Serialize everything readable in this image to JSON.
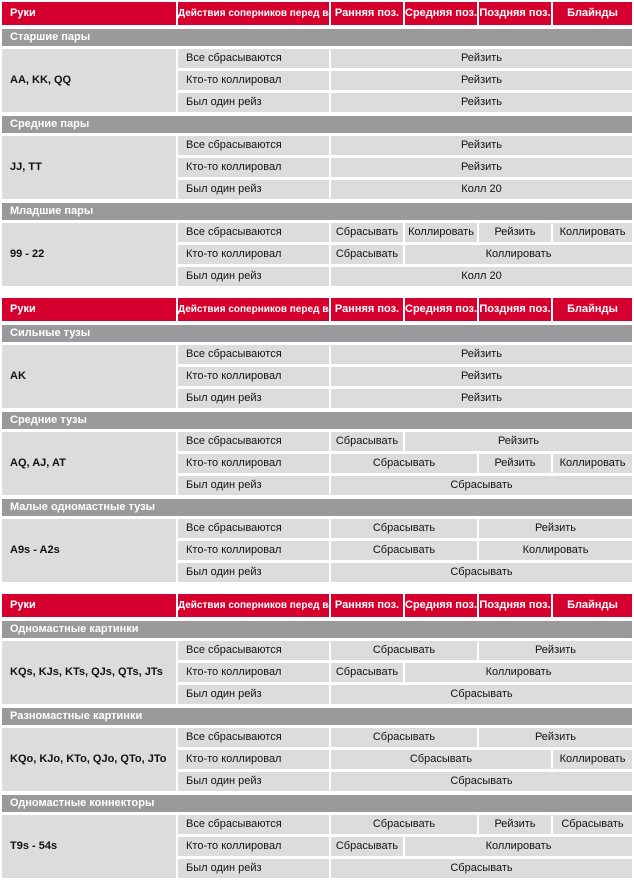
{
  "colors": {
    "header_red": "#d6002f",
    "section_gray": "#9a9a9c",
    "cell_gray": "#dcdcdc",
    "header_text": "#ffffff",
    "body_text": "#111111"
  },
  "columns": [
    "Руки",
    "Действия соперников перед вами",
    "Ранняя поз.",
    "Средняя поз.",
    "Поздняя поз.",
    "Блайнды"
  ],
  "tables": [
    {
      "sections": [
        {
          "title": "Старшие пары",
          "hands": "AA, KK, QQ",
          "rows": [
            {
              "action": "Все сбрасываются",
              "cells": [
                {
                  "text": "Рейзить",
                  "span": 4
                }
              ]
            },
            {
              "action": "Кто-то коллировал",
              "cells": [
                {
                  "text": "Рейзить",
                  "span": 4
                }
              ]
            },
            {
              "action": "Был один рейз",
              "cells": [
                {
                  "text": "Рейзить",
                  "span": 4
                }
              ]
            }
          ]
        },
        {
          "title": "Средние пары",
          "hands": "JJ, TT",
          "rows": [
            {
              "action": "Все сбрасываются",
              "cells": [
                {
                  "text": "Рейзить",
                  "span": 4
                }
              ]
            },
            {
              "action": "Кто-то коллировал",
              "cells": [
                {
                  "text": "Рейзить",
                  "span": 4
                }
              ]
            },
            {
              "action": "Был один рейз",
              "cells": [
                {
                  "text": "Колл 20",
                  "span": 4
                }
              ]
            }
          ]
        },
        {
          "title": "Младшие пары",
          "hands": "99 - 22",
          "rows": [
            {
              "action": "Все сбрасываются",
              "cells": [
                {
                  "text": "Сбрасывать",
                  "span": 1
                },
                {
                  "text": "Коллировать",
                  "span": 1
                },
                {
                  "text": "Рейзить",
                  "span": 1
                },
                {
                  "text": "Коллировать",
                  "span": 1
                }
              ]
            },
            {
              "action": "Кто-то коллировал",
              "cells": [
                {
                  "text": "Сбрасывать",
                  "span": 1
                },
                {
                  "text": "Коллировать",
                  "span": 3
                }
              ]
            },
            {
              "action": "Был один рейз",
              "cells": [
                {
                  "text": "Колл 20",
                  "span": 4
                }
              ]
            }
          ]
        }
      ]
    },
    {
      "sections": [
        {
          "title": "Сильные тузы",
          "hands": "AK",
          "rows": [
            {
              "action": "Все сбрасываются",
              "cells": [
                {
                  "text": "Рейзить",
                  "span": 4
                }
              ]
            },
            {
              "action": "Кто-то коллировал",
              "cells": [
                {
                  "text": "Рейзить",
                  "span": 4
                }
              ]
            },
            {
              "action": "Был один рейз",
              "cells": [
                {
                  "text": "Рейзить",
                  "span": 4
                }
              ]
            }
          ]
        },
        {
          "title": "Средние тузы",
          "hands": "AQ, AJ, AT",
          "rows": [
            {
              "action": "Все сбрасываются",
              "cells": [
                {
                  "text": "Сбрасывать",
                  "span": 1
                },
                {
                  "text": "Рейзить",
                  "span": 3
                }
              ]
            },
            {
              "action": "Кто-то коллировал",
              "cells": [
                {
                  "text": "Сбрасывать",
                  "span": 2
                },
                {
                  "text": "Рейзить",
                  "span": 1
                },
                {
                  "text": "Коллировать",
                  "span": 1
                }
              ]
            },
            {
              "action": "Был один рейз",
              "cells": [
                {
                  "text": "Сбрасывать",
                  "span": 4
                }
              ]
            }
          ]
        },
        {
          "title": "Малые одномастные тузы",
          "hands": "A9s - A2s",
          "rows": [
            {
              "action": "Все сбрасываются",
              "cells": [
                {
                  "text": "Сбрасывать",
                  "span": 2
                },
                {
                  "text": "Рейзить",
                  "span": 2
                }
              ]
            },
            {
              "action": "Кто-то коллировал",
              "cells": [
                {
                  "text": "Сбрасывать",
                  "span": 2
                },
                {
                  "text": "Коллировать",
                  "span": 2
                }
              ]
            },
            {
              "action": "Был один рейз",
              "cells": [
                {
                  "text": "Сбрасывать",
                  "span": 4
                }
              ]
            }
          ]
        }
      ]
    },
    {
      "sections": [
        {
          "title": "Одномастные картинки",
          "hands": "KQs, KJs, KTs, QJs, QTs, JTs",
          "rows": [
            {
              "action": "Все сбрасываются",
              "cells": [
                {
                  "text": "Сбрасывать",
                  "span": 2
                },
                {
                  "text": "Рейзить",
                  "span": 2
                }
              ]
            },
            {
              "action": "Кто-то коллировал",
              "cells": [
                {
                  "text": "Сбрасывать",
                  "span": 1
                },
                {
                  "text": "Коллировать",
                  "span": 3
                }
              ]
            },
            {
              "action": "Был один рейз",
              "cells": [
                {
                  "text": "Сбрасывать",
                  "span": 4
                }
              ]
            }
          ]
        },
        {
          "title": "Разномастные картинки",
          "hands": "KQo, KJo, KTo, QJo, QTo, JTo",
          "rows": [
            {
              "action": "Все сбрасываются",
              "cells": [
                {
                  "text": "Сбрасывать",
                  "span": 2
                },
                {
                  "text": "Рейзить",
                  "span": 2
                }
              ]
            },
            {
              "action": "Кто-то коллировал",
              "cells": [
                {
                  "text": "Сбрасывать",
                  "span": 3
                },
                {
                  "text": "Коллировать",
                  "span": 1
                }
              ]
            },
            {
              "action": "Был один рейз",
              "cells": [
                {
                  "text": "Сбрасывать",
                  "span": 4
                }
              ]
            }
          ]
        },
        {
          "title": "Одномастные коннекторы",
          "hands": "T9s - 54s",
          "rows": [
            {
              "action": "Все сбрасываются",
              "cells": [
                {
                  "text": "Сбрасывать",
                  "span": 2
                },
                {
                  "text": "Рейзить",
                  "span": 1
                },
                {
                  "text": "Сбрасывать",
                  "span": 1
                }
              ]
            },
            {
              "action": "Кто-то коллировал",
              "cells": [
                {
                  "text": "Сбрасывать",
                  "span": 1
                },
                {
                  "text": "Коллировать",
                  "span": 3
                }
              ]
            },
            {
              "action": "Был один рейз",
              "cells": [
                {
                  "text": "Сбрасывать",
                  "span": 4
                }
              ]
            }
          ]
        }
      ]
    }
  ]
}
